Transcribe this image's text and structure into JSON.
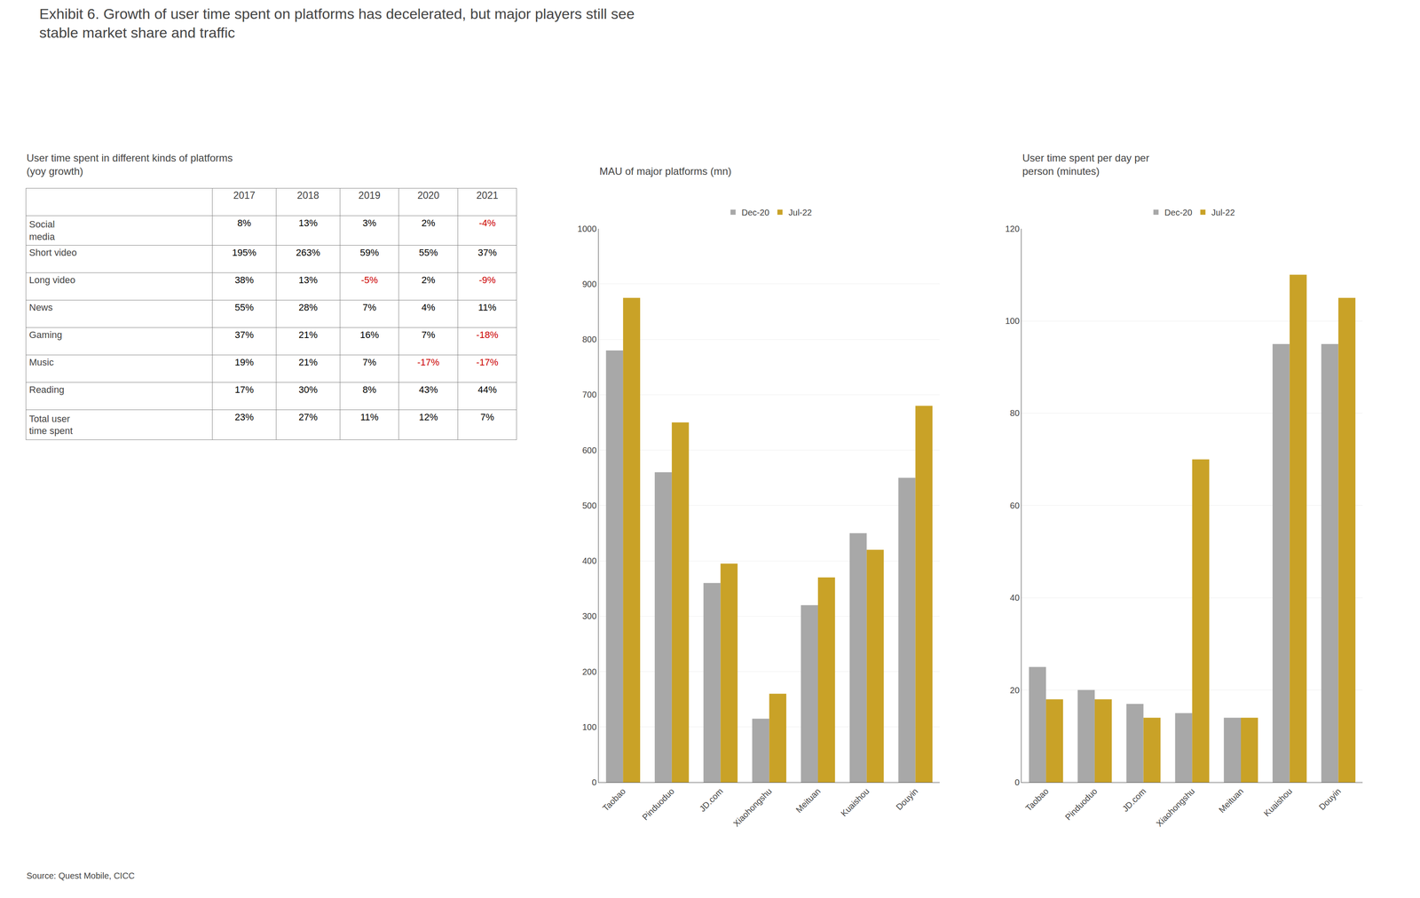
{
  "title": "Exhibit 6. Growth of user time spent on platforms has decelerated, but major players still see\nstable market share and traffic",
  "annotations": [
    "Source: Quest Mobile, CICC"
  ],
  "chart_data": [
    {
      "type": "table",
      "title": "User time spent in different kinds of platforms\n(yoy growth)",
      "categories": [
        "Social\nmedia",
        "Short video",
        "Long video",
        "News",
        "Gaming",
        "Music",
        "Reading",
        "Total user\ntime spent"
      ],
      "series": [
        {
          "name": "2017",
          "values": [
            8,
            195,
            38,
            55,
            37,
            19,
            17,
            23
          ],
          "value_labels": [
            "8%",
            "195%",
            "38%",
            "55%",
            "37%",
            "19%",
            "17%",
            "23%"
          ],
          "colors": [
            "#000000",
            "#000000",
            "#000000",
            "#000000",
            "#000000",
            "#000000",
            "#000000",
            "#000000"
          ]
        },
        {
          "name": "2018",
          "values": [
            13,
            263,
            13,
            28,
            21,
            21,
            30,
            27
          ],
          "value_labels": [
            "13%",
            "263%",
            "13%",
            "28%",
            "21%",
            "21%",
            "30%",
            "27%"
          ],
          "colors": [
            "#000000",
            "#000000",
            "#000000",
            "#000000",
            "#000000",
            "#000000",
            "#000000",
            "#000000"
          ]
        },
        {
          "name": "2019",
          "values": [
            3,
            59,
            -5,
            7,
            16,
            7,
            8,
            11
          ],
          "value_labels": [
            "3%",
            "59%",
            "-5%",
            "7%",
            "16%",
            "7%",
            "8%",
            "11%"
          ],
          "colors": [
            "#000000",
            "#000000",
            "#CC0000",
            "#000000",
            "#000000",
            "#000000",
            "#000000",
            "#000000"
          ]
        },
        {
          "name": "2020",
          "values": [
            2,
            55,
            2,
            4,
            7,
            -17,
            43,
            12
          ],
          "value_labels": [
            "2%",
            "55%",
            "2%",
            "4%",
            "7%",
            "-17%",
            "43%",
            "12%"
          ],
          "colors": [
            "#000000",
            "#000000",
            "#000000",
            "#000000",
            "#000000",
            "#CC0000",
            "#000000",
            "#000000"
          ]
        },
        {
          "name": "2021",
          "values": [
            -4,
            37,
            -9,
            11,
            -18,
            -17,
            44,
            7
          ],
          "value_labels": [
            "-4%",
            "37%",
            "-9%",
            "11%",
            "-18%",
            "-17%",
            "44%",
            "7%"
          ],
          "colors": [
            "#CC0000",
            "#000000",
            "#CC0000",
            "#000000",
            "#CC0000",
            "#CC0000",
            "#000000",
            "#000000"
          ]
        }
      ]
    },
    {
      "type": "bar",
      "title": "MAU of major platforms (mn)",
      "categories": [
        "Taobao",
        "Pinduoduo",
        "JD.com",
        "Xiaohongshu",
        "Meituan",
        "Kuaishou",
        "Douyin"
      ],
      "series": [
        {
          "name": "Dec-20",
          "color": "#A8A8A8",
          "values": [
            780,
            560,
            360,
            115,
            320,
            450,
            550
          ]
        },
        {
          "name": "Jul-22",
          "color": "#C9A227",
          "values": [
            875,
            650,
            395,
            160,
            370,
            420,
            680
          ]
        }
      ],
      "ylim": [
        0,
        1000
      ],
      "yticks": [
        0,
        100,
        200,
        300,
        400,
        500,
        600,
        700,
        800,
        900,
        1000
      ],
      "grid": true,
      "legend": "top"
    },
    {
      "type": "bar",
      "title": "User time spent per day per\nperson (minutes)",
      "categories": [
        "Taobao",
        "Pinduoduo",
        "JD.com",
        "Xiaohongshu",
        "Meituan",
        "Kuaishou",
        "Douyin"
      ],
      "series": [
        {
          "name": "Dec-20",
          "color": "#A8A8A8",
          "values": [
            25,
            20,
            17,
            15,
            14,
            95,
            95
          ]
        },
        {
          "name": "Jul-22",
          "color": "#C9A227",
          "values": [
            18,
            18,
            14,
            70,
            14,
            110,
            105
          ]
        }
      ],
      "ylim": [
        0,
        120
      ],
      "yticks": [
        0,
        20,
        40,
        60,
        80,
        100,
        120
      ],
      "grid": true,
      "legend": "top"
    }
  ]
}
